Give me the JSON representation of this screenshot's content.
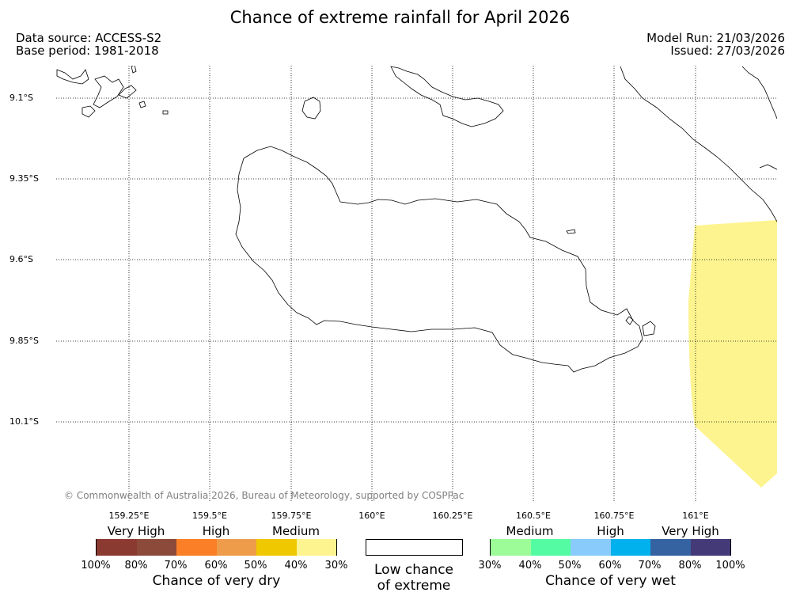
{
  "title": "Chance of extreme rainfall for April 2026",
  "data_source": "Data source: ACCESS-S2",
  "base_period": "Base period: 1981-2018",
  "model_run": "Model Run: 21/03/2026",
  "issued": "Issued: 27/03/2026",
  "copyright": "© Commonwealth of Australia 2026, Bureau of Meteorology, supported by COSPPac",
  "map": {
    "lon_ticks": [
      "159.25°E",
      "159.5°E",
      "159.75°E",
      "160°E",
      "160.25°E",
      "160.5°E",
      "160.75°E",
      "161°E"
    ],
    "lat_ticks": [
      "9.1°S",
      "9.35°S",
      "9.6°S",
      "9.85°S",
      "10.1°S"
    ],
    "shaded_area_color": "#fdf48f",
    "shaded_area_class": "Chance of very dry 30%-40%"
  },
  "legend": {
    "dry": {
      "categories": [
        "Very High",
        "High",
        "Medium"
      ],
      "ticks": [
        "100%",
        "80%",
        "70%",
        "60%",
        "50%",
        "40%",
        "30%"
      ],
      "colors": [
        "#8b3a32",
        "#8b4a3a",
        "#fa7f27",
        "#ee9c4a",
        "#f0c800",
        "#fdf48f"
      ],
      "caption": "Chance of very dry"
    },
    "low": {
      "caption_line1": "Low chance",
      "caption_line2": "of extreme",
      "color": "#ffffff"
    },
    "wet": {
      "categories": [
        "Medium",
        "High",
        "Very High"
      ],
      "ticks": [
        "30%",
        "40%",
        "50%",
        "60%",
        "70%",
        "80%",
        "100%"
      ],
      "colors": [
        "#9dfc98",
        "#55fba3",
        "#89cbfa",
        "#00b1ed",
        "#3562a0",
        "#433a77"
      ],
      "caption": "Chance of very wet"
    }
  }
}
